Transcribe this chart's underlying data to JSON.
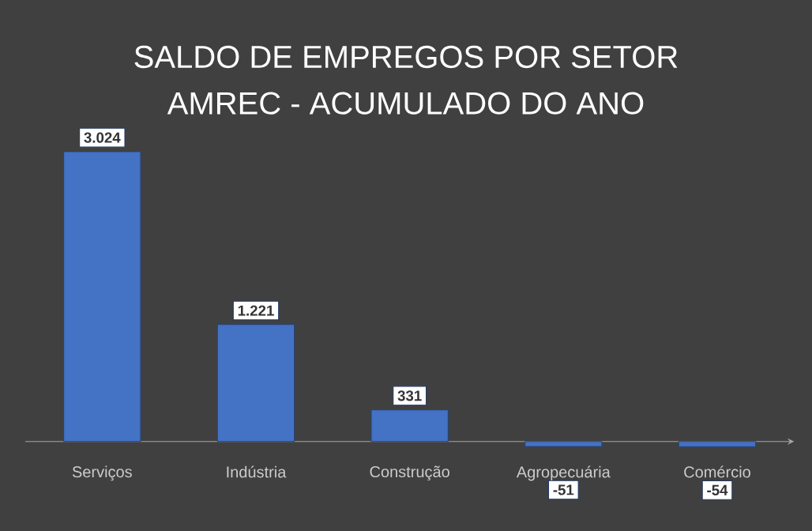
{
  "chart_data": {
    "type": "bar",
    "title": "SALDO DE EMPREGOS POR SETOR",
    "subtitle": "AMREC - ACUMULADO DO ANO",
    "categories": [
      "Serviços",
      "Indústria",
      "Construção",
      "Agropecuária",
      "Comércio"
    ],
    "values": [
      3024,
      1221,
      331,
      -51,
      -54
    ],
    "value_labels": [
      "3.024",
      "1.221",
      "331",
      "-51",
      "-54"
    ],
    "color": "#4472c4"
  }
}
